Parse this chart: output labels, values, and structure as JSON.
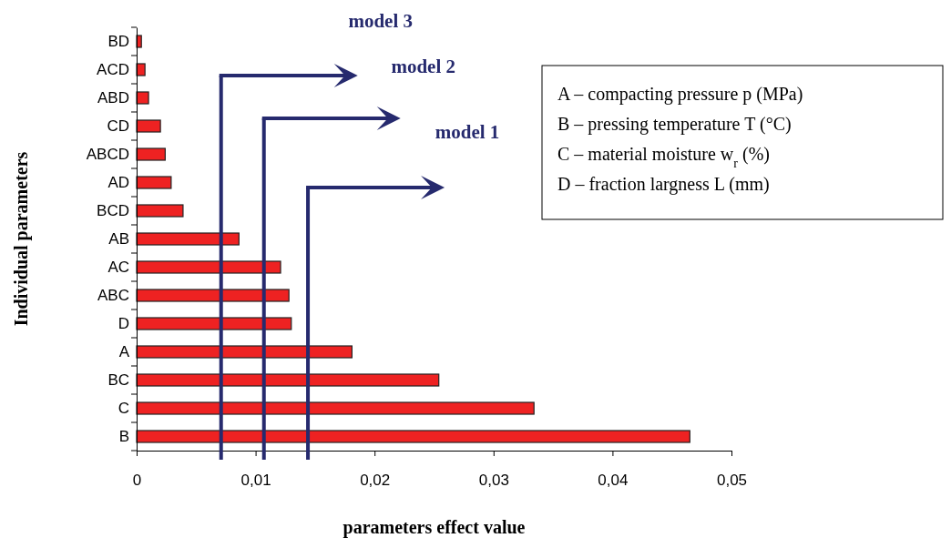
{
  "chart_data": {
    "type": "bar",
    "orientation": "horizontal",
    "categories": [
      "BD",
      "ACD",
      "ABD",
      "CD",
      "ABCD",
      "AD",
      "BCD",
      "AB",
      "AC",
      "ABC",
      "D",
      "A",
      "BC",
      "C",
      "B"
    ],
    "values": [
      0.0004,
      0.0007,
      0.001,
      0.002,
      0.0024,
      0.0029,
      0.0039,
      0.0086,
      0.0121,
      0.0128,
      0.013,
      0.0181,
      0.0254,
      0.0334,
      0.0465
    ],
    "color": "#ee2222",
    "xlim": [
      0,
      0.05
    ],
    "xticks": [
      {
        "value": 0,
        "label": "0"
      },
      {
        "value": 0.01,
        "label": "0,01"
      },
      {
        "value": 0.02,
        "label": "0,02"
      },
      {
        "value": 0.03,
        "label": "0,03"
      },
      {
        "value": 0.04,
        "label": "0,04"
      },
      {
        "value": 0.05,
        "label": "0,05"
      }
    ],
    "xlabel": "parameters effect value",
    "ylabel": "Individual parameters",
    "ref_lines": [
      {
        "axis": "x",
        "value": 0.0071,
        "label": "model 3",
        "color": "#262a6e"
      },
      {
        "axis": "x",
        "value": 0.0107,
        "label": "model 2",
        "color": "#262a6e"
      },
      {
        "axis": "x",
        "value": 0.0144,
        "label": "model 1",
        "color": "#262a6e"
      }
    ],
    "annotations": [
      "A – compacting pressure  p (MPa)",
      "B – pressing temperature  T (°C)",
      "C – material moisture  w$_{r}$ (%)",
      "D – fraction largness L (mm)"
    ],
    "grid": false
  }
}
